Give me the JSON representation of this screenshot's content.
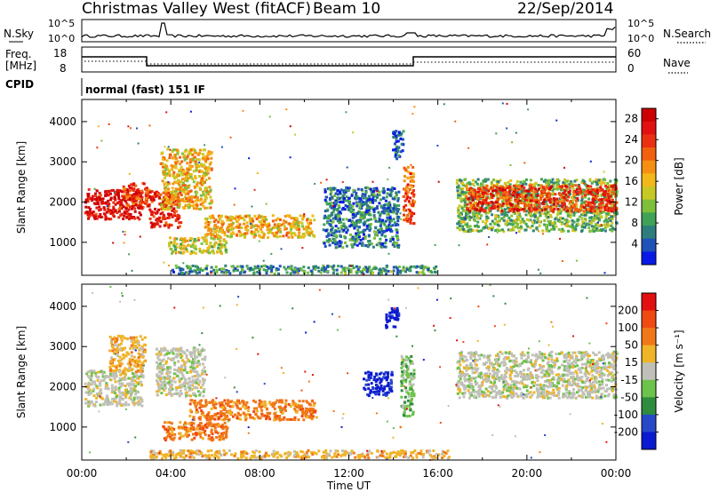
{
  "header": {
    "station": "Christmas Valley West (fitACF)",
    "beam": "Beam 10",
    "date": "22/Sep/2014"
  },
  "noise_panel": {
    "left_label": "N.Sky",
    "right_label": "N.Search",
    "top_tick": "10^5",
    "bottom_tick": "10^0"
  },
  "freq_panel": {
    "left_label_line1": "Freq.",
    "left_label_line2": "[MHz]",
    "left_ticks": [
      "18",
      "8"
    ],
    "right_ticks": [
      "60",
      "0"
    ],
    "right_label": "Nave"
  },
  "cpid": {
    "label": "CPID",
    "value": "normal (fast) 151 IF"
  },
  "chart_data": [
    {
      "type": "heatmap",
      "title": "",
      "xlabel": "Time UT",
      "ylabel": "Slant Range [km]",
      "x_ticks": [
        "00:00",
        "04:00",
        "08:00",
        "12:00",
        "16:00",
        "20:00",
        "00:00"
      ],
      "xlim_hours": [
        0,
        24
      ],
      "y_ticks": [
        1000,
        2000,
        3000,
        4000
      ],
      "ylim": [
        180,
        4550
      ],
      "colorbar": {
        "label": "Power [dB]",
        "ticks": [
          "4",
          "8",
          "12",
          "16",
          "20",
          "24",
          "28"
        ],
        "range": [
          0,
          30
        ],
        "colors": [
          "#0a1ae6",
          "#1f52b8",
          "#2f7e7e",
          "#3fa257",
          "#7ebf3b",
          "#c8c824",
          "#f2b81a",
          "#f59012",
          "#f0600f",
          "#ea3010",
          "#e21010",
          "#cc0000"
        ]
      },
      "regions": [
        {
          "t0": 0.1,
          "t1": 2.7,
          "r0": 1600,
          "r1": 2350,
          "level": 0.92
        },
        {
          "t0": 1.8,
          "t1": 3.0,
          "r0": 1900,
          "r1": 2500,
          "level": 0.78
        },
        {
          "t0": 3.0,
          "t1": 4.4,
          "r0": 1400,
          "r1": 2300,
          "level": 0.84
        },
        {
          "t0": 3.5,
          "t1": 5.8,
          "r0": 1850,
          "r1": 3350,
          "level": 0.55
        },
        {
          "t0": 3.8,
          "t1": 6.5,
          "r0": 750,
          "r1": 1150,
          "level": 0.45
        },
        {
          "t0": 5.5,
          "t1": 10.4,
          "r0": 1150,
          "r1": 1700,
          "level": 0.55
        },
        {
          "t0": 10.8,
          "t1": 14.2,
          "r0": 900,
          "r1": 2400,
          "level": 0.2
        },
        {
          "t0": 13.9,
          "t1": 14.4,
          "r0": 3100,
          "r1": 3800,
          "level": 0.12
        },
        {
          "t0": 14.4,
          "t1": 14.9,
          "r0": 1500,
          "r1": 2900,
          "level": 0.72
        },
        {
          "t0": 16.8,
          "t1": 24.0,
          "r0": 1300,
          "r1": 2600,
          "level": 0.35
        },
        {
          "t0": 17.2,
          "t1": 24.0,
          "r0": 1800,
          "r1": 2450,
          "level": 0.8
        },
        {
          "t0": 4.0,
          "t1": 16.0,
          "r0": 250,
          "r1": 450,
          "level": 0.25
        }
      ]
    },
    {
      "type": "heatmap",
      "title": "",
      "xlabel": "Time UT",
      "ylabel": "Slant Range [km]",
      "x_ticks": [
        "00:00",
        "04:00",
        "08:00",
        "12:00",
        "16:00",
        "20:00",
        "00:00"
      ],
      "xlim_hours": [
        0,
        24
      ],
      "y_ticks": [
        1000,
        2000,
        3000,
        4000
      ],
      "ylim": [
        180,
        4550
      ],
      "colorbar": {
        "label": "Velocity [m s⁻¹]",
        "ticks": [
          "200",
          "100",
          "50",
          "15",
          "-15",
          "-50",
          "-100",
          "-200"
        ],
        "range": [
          -250,
          250
        ],
        "colors": [
          "#0a1ad0",
          "#2848c8",
          "#2e8c3e",
          "#6cc24a",
          "#c0c0b8",
          "#f0b428",
          "#f07818",
          "#f04a12",
          "#e21010"
        ]
      },
      "regions": [
        {
          "t0": 0.1,
          "t1": 2.7,
          "r0": 1550,
          "r1": 2450,
          "level": 4
        },
        {
          "t0": 1.2,
          "t1": 2.8,
          "r0": 2400,
          "r1": 3300,
          "level": 5
        },
        {
          "t0": 3.3,
          "t1": 5.5,
          "r0": 1800,
          "r1": 3000,
          "level": 4
        },
        {
          "t0": 4.8,
          "t1": 10.5,
          "r0": 1200,
          "r1": 1700,
          "level": 6
        },
        {
          "t0": 3.6,
          "t1": 6.5,
          "r0": 700,
          "r1": 1150,
          "level": 6
        },
        {
          "t0": 12.6,
          "t1": 13.9,
          "r0": 1800,
          "r1": 2400,
          "level": 0
        },
        {
          "t0": 13.6,
          "t1": 14.2,
          "r0": 3500,
          "r1": 4000,
          "level": 0
        },
        {
          "t0": 14.3,
          "t1": 14.9,
          "r0": 1300,
          "r1": 2800,
          "level": 3
        },
        {
          "t0": 16.8,
          "t1": 24.0,
          "r0": 1750,
          "r1": 2900,
          "level": 4
        },
        {
          "t0": 3.0,
          "t1": 16.5,
          "r0": 250,
          "r1": 450,
          "level": 5
        }
      ]
    }
  ]
}
